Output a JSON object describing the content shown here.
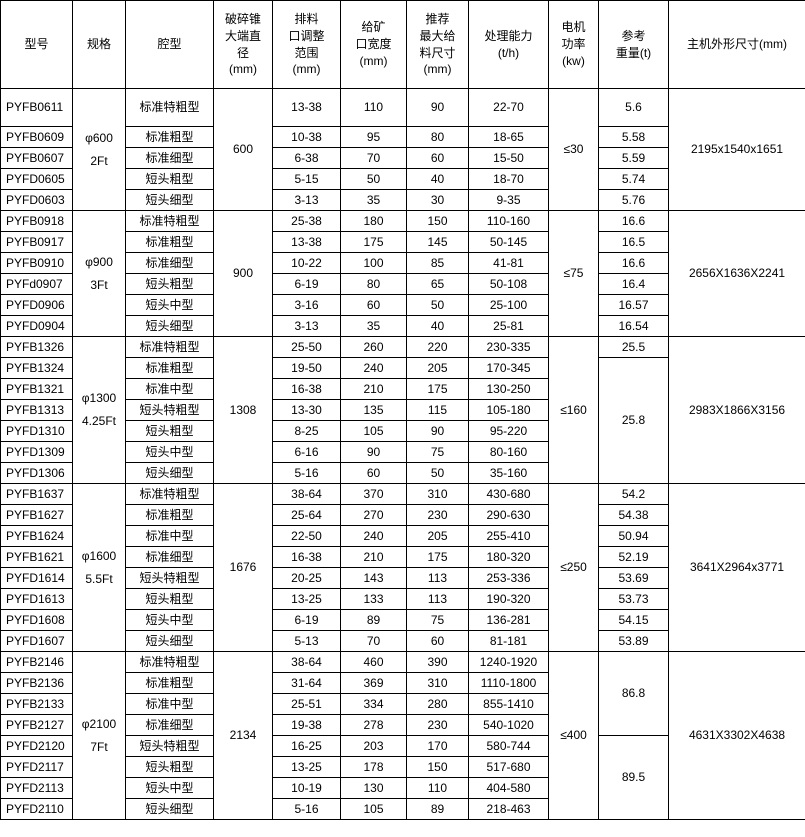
{
  "table": {
    "columns": [
      {
        "lines": [
          "型号"
        ]
      },
      {
        "lines": [
          "规格"
        ]
      },
      {
        "lines": [
          "腔型"
        ]
      },
      {
        "lines": [
          "破碎锥",
          "大端直",
          "径",
          "(mm)"
        ]
      },
      {
        "lines": [
          "排料",
          "口调整",
          "范围",
          "(mm)"
        ]
      },
      {
        "lines": [
          "给矿",
          "口宽度",
          "(mm)"
        ]
      },
      {
        "lines": [
          "推荐",
          "最大给",
          "料尺寸",
          "(mm)"
        ]
      },
      {
        "lines": [
          "处理能力",
          "(t/h)"
        ]
      },
      {
        "lines": [
          "电机",
          "功率",
          "(kw)"
        ]
      },
      {
        "lines": [
          "参考",
          "重量(t)"
        ]
      },
      {
        "lines": [
          "主机外形尺寸(mm)"
        ]
      }
    ],
    "groups": [
      {
        "spec": {
          "lines": [
            "φ600",
            "2Ft"
          ]
        },
        "diameter": "600",
        "power": "≤30",
        "dimensions": "2195x1540x1651",
        "rows": [
          {
            "model": "PYFB0611",
            "cavity": "标准特粗型",
            "discharge": "13-38",
            "feed_width": "110",
            "max_feed": "90",
            "capacity": "22-70",
            "weight": "5.6",
            "weight_span": 1
          },
          {
            "model": "PYFB0609",
            "cavity": "标准粗型",
            "discharge": "10-38",
            "feed_width": "95",
            "max_feed": "80",
            "capacity": "18-65",
            "weight": "5.58",
            "weight_span": 1
          },
          {
            "model": "PYFB0607",
            "cavity": "标准细型",
            "discharge": "6-38",
            "feed_width": "70",
            "max_feed": "60",
            "capacity": "15-50",
            "weight": "5.59",
            "weight_span": 1
          },
          {
            "model": "PYFD0605",
            "cavity": "短头粗型",
            "discharge": "5-15",
            "feed_width": "50",
            "max_feed": "40",
            "capacity": "18-70",
            "weight": "5.74",
            "weight_span": 1
          },
          {
            "model": "PYFD0603",
            "cavity": "短头细型",
            "discharge": "3-13",
            "feed_width": "35",
            "max_feed": "30",
            "capacity": "9-35",
            "weight": "5.76",
            "weight_span": 1
          }
        ]
      },
      {
        "spec": {
          "lines": [
            "φ900",
            "3Ft"
          ]
        },
        "diameter": "900",
        "power": "≤75",
        "dimensions": "2656X1636X2241",
        "rows": [
          {
            "model": "PYFB0918",
            "cavity": "标准特粗型",
            "discharge": "25-38",
            "feed_width": "180",
            "max_feed": "150",
            "capacity": "110-160",
            "weight": "16.6",
            "weight_span": 1
          },
          {
            "model": "PYFB0917",
            "cavity": "标准粗型",
            "discharge": "13-38",
            "feed_width": "175",
            "max_feed": "145",
            "capacity": "50-145",
            "weight": "16.5",
            "weight_span": 1
          },
          {
            "model": "PYFB0910",
            "cavity": "标准细型",
            "discharge": "10-22",
            "feed_width": "100",
            "max_feed": "85",
            "capacity": "41-81",
            "weight": "16.6",
            "weight_span": 1
          },
          {
            "model": "PYFd0907",
            "cavity": "短头粗型",
            "discharge": "6-19",
            "feed_width": "80",
            "max_feed": "65",
            "capacity": "50-108",
            "weight": "16.4",
            "weight_span": 1
          },
          {
            "model": "PYFD0906",
            "cavity": "短头中型",
            "discharge": "3-16",
            "feed_width": "60",
            "max_feed": "50",
            "capacity": "25-100",
            "weight": "16.57",
            "weight_span": 1
          },
          {
            "model": "PYFD0904",
            "cavity": "短头细型",
            "discharge": "3-13",
            "feed_width": "35",
            "max_feed": "40",
            "capacity": "25-81",
            "weight": "16.54",
            "weight_span": 1
          }
        ]
      },
      {
        "spec": {
          "lines": [
            "φ1300",
            "4.25Ft"
          ]
        },
        "diameter": "1308",
        "power": "≤160",
        "dimensions": "2983X1866X3156",
        "rows": [
          {
            "model": "PYFB1326",
            "cavity": "标准特粗型",
            "discharge": "25-50",
            "feed_width": "260",
            "max_feed": "220",
            "capacity": "230-335",
            "weight": "25.5",
            "weight_span": 1
          },
          {
            "model": "PYFB1324",
            "cavity": "标准粗型",
            "discharge": "19-50",
            "feed_width": "240",
            "max_feed": "205",
            "capacity": "170-345",
            "weight": "25.8",
            "weight_span": 6
          },
          {
            "model": "PYFB1321",
            "cavity": "标准中型",
            "discharge": "16-38",
            "feed_width": "210",
            "max_feed": "175",
            "capacity": "130-250",
            "weight": null
          },
          {
            "model": "PYFB1313",
            "cavity": "短头特粗型",
            "discharge": "13-30",
            "feed_width": "135",
            "max_feed": "115",
            "capacity": "105-180",
            "weight": null
          },
          {
            "model": "PYFD1310",
            "cavity": "短头粗型",
            "discharge": "8-25",
            "feed_width": "105",
            "max_feed": "90",
            "capacity": "95-220",
            "weight": null
          },
          {
            "model": "PYFD1309",
            "cavity": "短头中型",
            "discharge": "6-16",
            "feed_width": "90",
            "max_feed": "75",
            "capacity": "80-160",
            "weight": null
          },
          {
            "model": "PYFD1306",
            "cavity": "短头细型",
            "discharge": "5-16",
            "feed_width": "60",
            "max_feed": "50",
            "capacity": "35-160",
            "weight": null
          }
        ]
      },
      {
        "spec": {
          "lines": [
            "φ1600",
            "5.5Ft"
          ]
        },
        "diameter": "1676",
        "power": "≤250",
        "dimensions": "3641X2964x3771",
        "rows": [
          {
            "model": "PYFB1637",
            "cavity": "标准特粗型",
            "discharge": "38-64",
            "feed_width": "370",
            "max_feed": "310",
            "capacity": "430-680",
            "weight": "54.2",
            "weight_span": 1
          },
          {
            "model": "PYFB1627",
            "cavity": "标准粗型",
            "discharge": "25-64",
            "feed_width": "270",
            "max_feed": "230",
            "capacity": "290-630",
            "weight": "54.38",
            "weight_span": 1
          },
          {
            "model": "PYFB1624",
            "cavity": "标准中型",
            "discharge": "22-50",
            "feed_width": "240",
            "max_feed": "205",
            "capacity": "255-410",
            "weight": "50.94",
            "weight_span": 1
          },
          {
            "model": "PYFB1621",
            "cavity": "标准细型",
            "discharge": "16-38",
            "feed_width": "210",
            "max_feed": "175",
            "capacity": "180-320",
            "weight": "52.19",
            "weight_span": 1
          },
          {
            "model": "PYFD1614",
            "cavity": "短头特粗型",
            "discharge": "20-25",
            "feed_width": "143",
            "max_feed": "113",
            "capacity": "253-336",
            "weight": "53.69",
            "weight_span": 1
          },
          {
            "model": "PYFD1613",
            "cavity": "短头粗型",
            "discharge": "13-25",
            "feed_width": "133",
            "max_feed": "113",
            "capacity": "190-320",
            "weight": "53.73",
            "weight_span": 1
          },
          {
            "model": "PYFD1608",
            "cavity": "短头中型",
            "discharge": "6-19",
            "feed_width": "89",
            "max_feed": "75",
            "capacity": "136-281",
            "weight": "54.15",
            "weight_span": 1
          },
          {
            "model": "PYFD1607",
            "cavity": "短头细型",
            "discharge": "5-13",
            "feed_width": "70",
            "max_feed": "60",
            "capacity": "81-181",
            "weight": "53.89",
            "weight_span": 1
          }
        ]
      },
      {
        "spec": {
          "lines": [
            "φ2100",
            "7Ft"
          ]
        },
        "diameter": "2134",
        "power": "≤400",
        "dimensions": "4631X3302X4638",
        "rows": [
          {
            "model": "PYFB2146",
            "cavity": "标准特粗型",
            "discharge": "38-64",
            "feed_width": "460",
            "max_feed": "390",
            "capacity": "1240-1920",
            "weight": "86.8",
            "weight_span": 4
          },
          {
            "model": "PYFB2136",
            "cavity": "标准粗型",
            "discharge": "31-64",
            "feed_width": "369",
            "max_feed": "310",
            "capacity": "1110-1800",
            "weight": null
          },
          {
            "model": "PYFB2133",
            "cavity": "标准中型",
            "discharge": "25-51",
            "feed_width": "334",
            "max_feed": "280",
            "capacity": "855-1410",
            "weight": null
          },
          {
            "model": "PYFB2127",
            "cavity": "标准细型",
            "discharge": "19-38",
            "feed_width": "278",
            "max_feed": "230",
            "capacity": "540-1020",
            "weight": null
          },
          {
            "model": "PYFD2120",
            "cavity": "短头特粗型",
            "discharge": "16-25",
            "feed_width": "203",
            "max_feed": "170",
            "capacity": "580-744",
            "weight": "89.5",
            "weight_span": 4
          },
          {
            "model": "PYFD2117",
            "cavity": "短头粗型",
            "discharge": "13-25",
            "feed_width": "178",
            "max_feed": "150",
            "capacity": "517-680",
            "weight": null
          },
          {
            "model": "PYFD2113",
            "cavity": "短头中型",
            "discharge": "10-19",
            "feed_width": "130",
            "max_feed": "110",
            "capacity": "404-580",
            "weight": null
          },
          {
            "model": "PYFD2110",
            "cavity": "短头细型",
            "discharge": "5-16",
            "feed_width": "105",
            "max_feed": "89",
            "capacity": "218-463",
            "weight": null
          }
        ]
      }
    ]
  }
}
